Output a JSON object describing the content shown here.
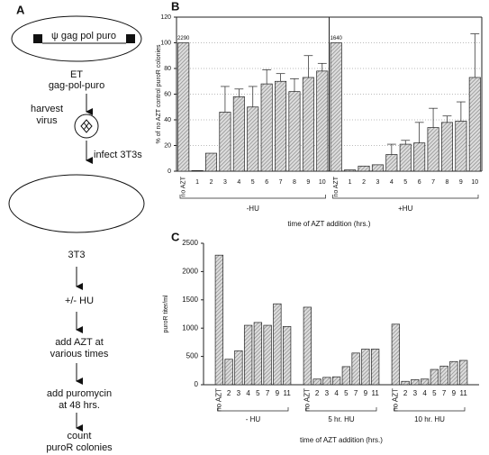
{
  "diagram": {
    "panel_label": "A",
    "construct": "ψ gag pol puro",
    "cell_line": "ET",
    "cell_construct": "gag-pol-puro",
    "harvest": "harvest",
    "virus": "virus",
    "infect": "infect 3T3s",
    "target": "3T3",
    "hu": "+/- HU",
    "azt_1": "add AZT at",
    "azt_2": "various times",
    "puro_1": "add puromycin",
    "puro_2": "at 48 hrs.",
    "count_1": "count",
    "count_2": "puroR colonies"
  },
  "chart_data": [
    {
      "type": "bar",
      "panel_label": "B",
      "ylabel": "% of no AZT control puroR colonies",
      "xlabel": "time of AZT addition (hrs.)",
      "ylim": [
        0,
        120
      ],
      "yticks": [
        0,
        20,
        40,
        60,
        80,
        100,
        120
      ],
      "grid": true,
      "color": "#888888",
      "groups": [
        {
          "label": "-HU",
          "annotation": "2290",
          "categories": [
            "no AZT",
            "1",
            "2",
            "3",
            "4",
            "5",
            "6",
            "7",
            "8",
            "9",
            "10"
          ],
          "values": [
            100,
            0.5,
            14,
            46,
            58,
            50,
            68,
            70,
            62,
            73,
            78
          ],
          "errors": [
            null,
            null,
            null,
            20,
            6,
            16,
            11,
            6,
            10,
            17,
            6
          ]
        },
        {
          "label": "+HU",
          "annotation": "1640",
          "categories": [
            "no AZT",
            "1",
            "2",
            "3",
            "4",
            "5",
            "6",
            "7",
            "8",
            "9",
            "10"
          ],
          "values": [
            100,
            1,
            4,
            5,
            13,
            21,
            22,
            34,
            38,
            39,
            73
          ],
          "errors": [
            null,
            null,
            null,
            null,
            8,
            3,
            16,
            15,
            5,
            15,
            34
          ]
        }
      ]
    },
    {
      "type": "bar",
      "panel_label": "C",
      "ylabel": "puroR titer/ml",
      "xlabel": "time of AZT addition (hrs.)",
      "ylim": [
        0,
        2500
      ],
      "yticks": [
        0,
        500,
        1000,
        1500,
        2000,
        2500
      ],
      "grid": false,
      "color": "#888888",
      "groups": [
        {
          "label": "- HU",
          "categories": [
            "no AZT",
            "2",
            "3",
            "4",
            "5",
            "7",
            "9",
            "11"
          ],
          "values": [
            2290,
            450,
            600,
            1050,
            1100,
            1050,
            1430,
            1030
          ]
        },
        {
          "label": "5 hr. HU",
          "categories": [
            "no AZT",
            "2",
            "3",
            "4",
            "5",
            "7",
            "9",
            "11"
          ],
          "values": [
            1370,
            100,
            130,
            140,
            320,
            560,
            630,
            630
          ]
        },
        {
          "label": "10 hr. HU",
          "categories": [
            "no AZT",
            "2",
            "3",
            "4",
            "5",
            "7",
            "9",
            "11"
          ],
          "values": [
            1070,
            60,
            90,
            100,
            270,
            330,
            410,
            430
          ]
        }
      ]
    }
  ]
}
